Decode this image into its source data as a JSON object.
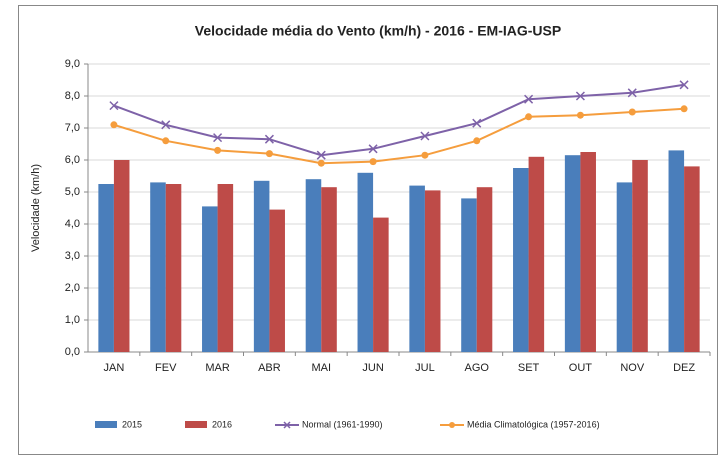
{
  "chart_data": {
    "type": "bar",
    "title": "Velocidade média do Vento (km/h) - 2016 - EM-IAG-USP",
    "y_label": "Velocidade (km/h)",
    "categories": [
      "JAN",
      "FEV",
      "MAR",
      "ABR",
      "MAI",
      "JUN",
      "JUL",
      "AGO",
      "SET",
      "OUT",
      "NOV",
      "DEZ"
    ],
    "series": [
      {
        "name": "2015",
        "type": "bar",
        "color": "#4a7ebb",
        "values": [
          5.25,
          5.3,
          4.55,
          5.35,
          5.4,
          5.6,
          5.2,
          4.8,
          5.75,
          6.15,
          5.3,
          6.3
        ]
      },
      {
        "name": "2016",
        "type": "bar",
        "color": "#be4b48",
        "values": [
          6.0,
          5.25,
          5.25,
          4.45,
          5.15,
          4.2,
          5.05,
          5.15,
          6.1,
          6.25,
          6.0,
          5.8
        ]
      },
      {
        "name": "Normal (1961-1990)",
        "type": "line",
        "marker": "x",
        "color": "#7e62a8",
        "values": [
          7.7,
          7.1,
          6.7,
          6.65,
          6.15,
          6.35,
          6.75,
          7.15,
          7.9,
          8.0,
          8.1,
          8.35
        ]
      },
      {
        "name": "Média Climatológica (1957-2016)",
        "type": "line",
        "marker": "circle",
        "color": "#f59d3d",
        "values": [
          7.1,
          6.6,
          6.3,
          6.2,
          5.9,
          5.95,
          6.15,
          6.6,
          7.35,
          7.4,
          7.5,
          7.6
        ]
      }
    ],
    "ylim": [
      0,
      9
    ],
    "yticks": [
      {
        "value": 0,
        "label": "0,0"
      },
      {
        "value": 1,
        "label": "1,0"
      },
      {
        "value": 2,
        "label": "2,0"
      },
      {
        "value": 3,
        "label": "3,0"
      },
      {
        "value": 4,
        "label": "4,0"
      },
      {
        "value": 5,
        "label": "5,0"
      },
      {
        "value": 6,
        "label": "6,0"
      },
      {
        "value": 7,
        "label": "7,0"
      },
      {
        "value": 8,
        "label": "8,0"
      },
      {
        "value": 9,
        "label": "9,0"
      }
    ],
    "grid": true,
    "legend": "bottom"
  }
}
